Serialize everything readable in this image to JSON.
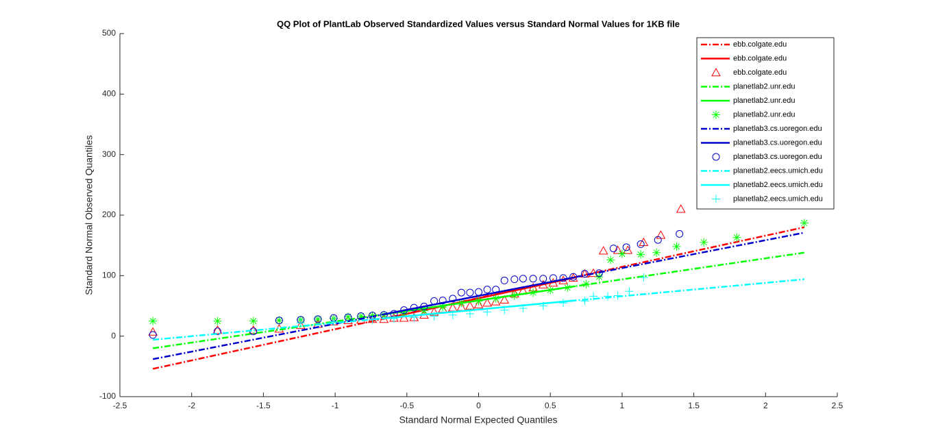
{
  "chart_data": {
    "type": "scatter",
    "title": "QQ Plot of PlantLab Observed Standardized Values versus Standard Normal Values for 1KB file",
    "x_label": "Standard Normal Expected Quantiles",
    "y_label": "Standard Normal Observed Quantiles",
    "xlim": [
      -2.5,
      2.5
    ],
    "xticks": [
      -2.5,
      -2,
      -1.5,
      -1,
      -0.5,
      0,
      0.5,
      1,
      1.5,
      2,
      2.5
    ],
    "ylim": [
      -100,
      500
    ],
    "yticks": [
      -100,
      0,
      100,
      200,
      300,
      400,
      500
    ],
    "legend_position": "top-right",
    "series": [
      {
        "name": "ebb.colgate.edu",
        "color": "#ff0000",
        "style": "dashdot",
        "x": [
          -2.27,
          2.27
        ],
        "values": [
          -54,
          180
        ]
      },
      {
        "name": "ebb.colgate.edu",
        "color": "#ff0000",
        "style": "solid",
        "x": [
          -0.674,
          0.674
        ],
        "values": [
          28,
          97
        ]
      },
      {
        "name": "ebb.colgate.edu",
        "color": "#ff0000",
        "style": "marker",
        "marker": "triangle",
        "x": [
          -2.27,
          -1.82,
          -1.57,
          -1.39,
          -1.24,
          -1.12,
          -1.01,
          -0.91,
          -0.82,
          -0.74,
          -0.66,
          -0.59,
          -0.52,
          -0.45,
          -0.38,
          -0.31,
          -0.25,
          -0.18,
          -0.12,
          -0.06,
          0,
          0.06,
          0.12,
          0.18,
          0.25,
          0.31,
          0.38,
          0.45,
          0.52,
          0.59,
          0.66,
          0.74,
          0.8,
          0.87,
          0.97,
          1.04,
          1.15,
          1.27,
          1.41
        ],
        "values": [
          7,
          10,
          10,
          12,
          18,
          20,
          24,
          26,
          27,
          28,
          28,
          30,
          30,
          31,
          35,
          40,
          45,
          47,
          48,
          50,
          52,
          55,
          57,
          60,
          70,
          75,
          80,
          85,
          88,
          92,
          96,
          103,
          104,
          141,
          142,
          142,
          155,
          167,
          210
        ]
      },
      {
        "name": "planetlab2.unr.edu",
        "color": "#00ff00",
        "style": "dashdot",
        "x": [
          -2.27,
          2.27
        ],
        "values": [
          -20,
          138
        ]
      },
      {
        "name": "planetlab2.unr.edu",
        "color": "#00ff00",
        "style": "solid",
        "x": [
          -0.674,
          0.674
        ],
        "values": [
          35.5,
          82.5
        ]
      },
      {
        "name": "planetlab2.unr.edu",
        "color": "#00ff00",
        "style": "marker",
        "marker": "star",
        "x": [
          -2.27,
          -1.82,
          -1.57,
          -1.39,
          -1.24,
          -1.12,
          -1.01,
          -0.91,
          -0.82,
          -0.74,
          -0.66,
          -0.52,
          -0.38,
          -0.25,
          -0.12,
          0,
          0.12,
          0.25,
          0.38,
          0.5,
          0.62,
          0.75,
          0.84,
          0.92,
          1.0,
          1.13,
          1.24,
          1.38,
          1.57,
          1.8,
          2.27
        ],
        "values": [
          25,
          25,
          25,
          26,
          27,
          28,
          29,
          32,
          33,
          34,
          35,
          38,
          42,
          48,
          55,
          58,
          62,
          67,
          72,
          76,
          80,
          86,
          98,
          126,
          136,
          135,
          138,
          148,
          155,
          163,
          187
        ]
      },
      {
        "name": "planetlab3.cs.uoregon.edu",
        "color": "#0000cc",
        "style": "dashdot",
        "x": [
          -2.27,
          2.27
        ],
        "values": [
          -38,
          171
        ]
      },
      {
        "name": "planetlab3.cs.uoregon.edu",
        "color": "#0000cc",
        "style": "solid",
        "x": [
          -0.674,
          0.674
        ],
        "values": [
          35.5,
          97.5
        ]
      },
      {
        "name": "planetlab3.cs.uoregon.edu",
        "color": "#0000cc",
        "style": "marker",
        "marker": "circle",
        "x": [
          -2.27,
          -1.82,
          -1.57,
          -1.39,
          -1.24,
          -1.12,
          -1.01,
          -0.91,
          -0.82,
          -0.74,
          -0.66,
          -0.59,
          -0.52,
          -0.45,
          -0.38,
          -0.31,
          -0.25,
          -0.18,
          -0.12,
          -0.06,
          0,
          0.06,
          0.12,
          0.18,
          0.25,
          0.31,
          0.38,
          0.45,
          0.52,
          0.59,
          0.66,
          0.74,
          0.84,
          0.94,
          1.03,
          1.13,
          1.25,
          1.4
        ],
        "values": [
          2,
          8,
          8,
          26,
          27,
          28,
          30,
          31,
          33,
          34,
          35,
          37,
          43,
          47,
          49,
          58,
          59,
          62,
          72,
          72,
          73,
          77,
          77,
          92,
          94,
          95,
          95,
          95,
          96,
          96,
          98,
          103,
          104,
          145,
          147,
          152,
          159,
          169
        ]
      },
      {
        "name": "planetlab2.eecs.umich.edu",
        "color": "#00ffff",
        "style": "dashdot",
        "x": [
          -2.27,
          2.27
        ],
        "values": [
          -6,
          94
        ]
      },
      {
        "name": "planetlab2.eecs.umich.edu",
        "color": "#00ffff",
        "style": "solid",
        "x": [
          -0.674,
          0.674
        ],
        "values": [
          29,
          59
        ]
      },
      {
        "name": "planetlab2.eecs.umich.edu",
        "color": "#00ffff",
        "style": "marker",
        "marker": "plus",
        "x": [
          -1.24,
          -1.01,
          -0.74,
          -0.59,
          -0.45,
          -0.31,
          -0.18,
          -0.06,
          0.06,
          0.18,
          0.31,
          0.45,
          0.59,
          0.74,
          0.8,
          0.9,
          0.97,
          1.05,
          1.15
        ],
        "values": [
          22,
          24,
          27,
          29,
          31,
          33,
          35,
          37,
          40,
          43,
          46,
          50,
          55,
          58,
          66,
          66,
          67,
          74,
          97
        ]
      }
    ]
  }
}
